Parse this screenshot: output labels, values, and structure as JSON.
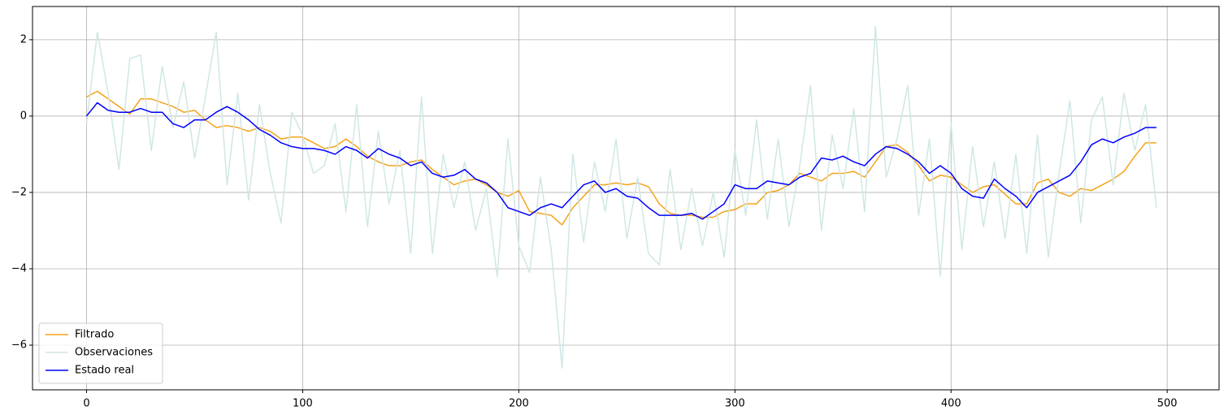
{
  "chart_data": {
    "type": "line",
    "x": [
      0,
      5,
      10,
      15,
      20,
      25,
      30,
      35,
      40,
      45,
      50,
      55,
      60,
      65,
      70,
      75,
      80,
      85,
      90,
      95,
      100,
      105,
      110,
      115,
      120,
      125,
      130,
      135,
      140,
      145,
      150,
      155,
      160,
      165,
      170,
      175,
      180,
      185,
      190,
      195,
      200,
      205,
      210,
      215,
      220,
      225,
      230,
      235,
      240,
      245,
      250,
      255,
      260,
      265,
      270,
      275,
      280,
      285,
      290,
      295,
      300,
      305,
      310,
      315,
      320,
      325,
      330,
      335,
      340,
      345,
      350,
      355,
      360,
      365,
      370,
      375,
      380,
      385,
      390,
      395,
      400,
      405,
      410,
      415,
      420,
      425,
      430,
      435,
      440,
      445,
      450,
      455,
      460,
      465,
      470,
      475,
      480,
      485,
      490,
      495
    ],
    "series": [
      {
        "name": "Filtrado",
        "color": "#f5a31a",
        "values": [
          0.5,
          0.65,
          0.45,
          0.25,
          0.05,
          0.45,
          0.45,
          0.35,
          0.25,
          0.1,
          0.15,
          -0.1,
          -0.3,
          -0.25,
          -0.3,
          -0.4,
          -0.3,
          -0.4,
          -0.6,
          -0.55,
          -0.55,
          -0.7,
          -0.85,
          -0.8,
          -0.6,
          -0.8,
          -1.05,
          -1.2,
          -1.3,
          -1.3,
          -1.2,
          -1.15,
          -1.4,
          -1.6,
          -1.8,
          -1.7,
          -1.65,
          -1.8,
          -2.0,
          -2.1,
          -1.95,
          -2.5,
          -2.55,
          -2.6,
          -2.85,
          -2.4,
          -2.1,
          -1.8,
          -1.8,
          -1.75,
          -1.8,
          -1.75,
          -1.85,
          -2.3,
          -2.55,
          -2.6,
          -2.6,
          -2.65,
          -2.65,
          -2.5,
          -2.45,
          -2.3,
          -2.3,
          -2.0,
          -1.95,
          -1.8,
          -1.5,
          -1.6,
          -1.7,
          -1.5,
          -1.5,
          -1.45,
          -1.6,
          -1.2,
          -0.8,
          -0.75,
          -0.95,
          -1.3,
          -1.7,
          -1.55,
          -1.6,
          -1.8,
          -2.0,
          -1.85,
          -1.8,
          -2.05,
          -2.3,
          -2.3,
          -1.75,
          -1.65,
          -2.0,
          -2.1,
          -1.9,
          -1.95,
          -1.8,
          -1.65,
          -1.45,
          -1.05,
          -0.7,
          -0.7
        ]
      },
      {
        "name": "Observaciones",
        "color": "#cfe7e5",
        "values": [
          -0.2,
          2.2,
          0.6,
          -1.4,
          1.5,
          1.6,
          -0.9,
          1.3,
          -0.3,
          0.9,
          -1.1,
          0.5,
          2.2,
          -1.8,
          0.6,
          -2.2,
          0.3,
          -1.5,
          -2.8,
          0.1,
          -0.5,
          -1.5,
          -1.3,
          -0.2,
          -2.5,
          0.3,
          -2.9,
          -0.4,
          -2.3,
          -0.9,
          -3.6,
          0.5,
          -3.6,
          -1.0,
          -2.4,
          -1.2,
          -3.0,
          -1.9,
          -4.2,
          -0.6,
          -3.4,
          -4.1,
          -1.6,
          -3.5,
          -6.6,
          -1.0,
          -3.3,
          -1.2,
          -2.5,
          -0.6,
          -3.2,
          -1.6,
          -3.6,
          -3.9,
          -1.4,
          -3.5,
          -1.9,
          -3.4,
          -2.0,
          -3.7,
          -0.9,
          -2.6,
          -0.1,
          -2.7,
          -0.6,
          -2.9,
          -1.3,
          0.8,
          -3.0,
          -0.5,
          -1.9,
          0.2,
          -2.5,
          2.35,
          -1.6,
          -0.6,
          0.8,
          -2.6,
          -0.6,
          -4.2,
          -0.2,
          -3.5,
          -0.8,
          -2.9,
          -1.2,
          -3.2,
          -1.0,
          -3.6,
          -0.5,
          -3.7,
          -1.5,
          0.4,
          -2.8,
          -0.1,
          0.5,
          -1.8,
          0.6,
          -0.9,
          0.3,
          -2.4
        ]
      },
      {
        "name": "Estado real",
        "color": "#0000ff",
        "values": [
          0,
          0.35,
          0.15,
          0.1,
          0.1,
          0.2,
          0.1,
          0.1,
          -0.2,
          -0.3,
          -0.1,
          -0.1,
          0.1,
          0.25,
          0.1,
          -0.1,
          -0.35,
          -0.5,
          -0.7,
          -0.8,
          -0.85,
          -0.85,
          -0.9,
          -1.0,
          -0.8,
          -0.9,
          -1.1,
          -0.85,
          -1.0,
          -1.1,
          -1.3,
          -1.2,
          -1.5,
          -1.6,
          -1.55,
          -1.4,
          -1.65,
          -1.75,
          -2.0,
          -2.4,
          -2.5,
          -2.6,
          -2.4,
          -2.3,
          -2.4,
          -2.1,
          -1.8,
          -1.7,
          -2.0,
          -1.9,
          -2.1,
          -2.15,
          -2.4,
          -2.6,
          -2.6,
          -2.6,
          -2.55,
          -2.7,
          -2.5,
          -2.3,
          -1.8,
          -1.9,
          -1.9,
          -1.7,
          -1.75,
          -1.8,
          -1.6,
          -1.5,
          -1.1,
          -1.15,
          -1.05,
          -1.2,
          -1.3,
          -1.0,
          -0.8,
          -0.85,
          -1.0,
          -1.2,
          -1.5,
          -1.3,
          -1.5,
          -1.9,
          -2.1,
          -2.15,
          -1.65,
          -1.9,
          -2.1,
          -2.4,
          -2.0,
          -1.85,
          -1.7,
          -1.55,
          -1.2,
          -0.75,
          -0.6,
          -0.7,
          -0.55,
          -0.45,
          -0.3,
          -0.3
        ]
      }
    ],
    "xlim": [
      -25,
      524
    ],
    "ylim": [
      -7.17,
      2.87
    ],
    "xticks": [
      0,
      100,
      200,
      300,
      400,
      500
    ],
    "yticks": [
      {
        "value": -6,
        "label": "−6"
      },
      {
        "value": -4,
        "label": "−4"
      },
      {
        "value": -2,
        "label": "−2"
      },
      0,
      2
    ],
    "grid": true,
    "legend": "lower left"
  }
}
